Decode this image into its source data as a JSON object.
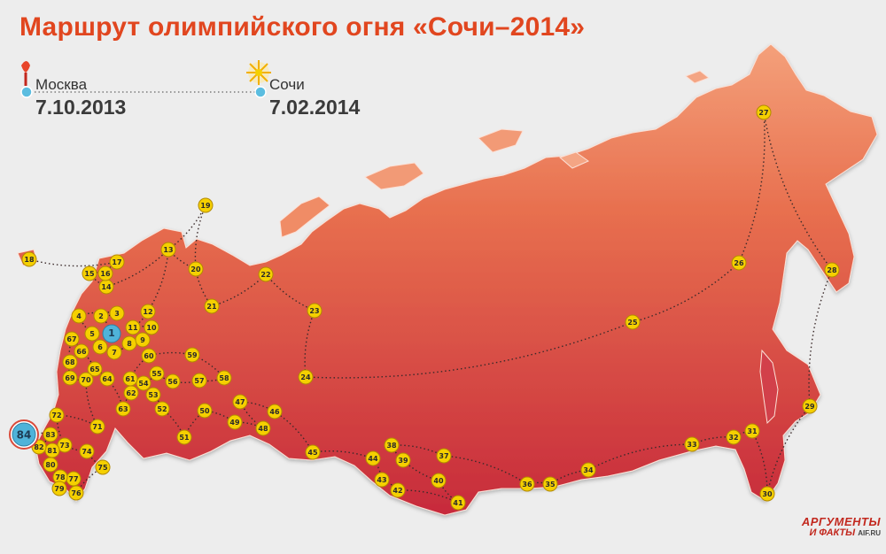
{
  "title": "Маршрут олимпийского огня «Сочи–2014»",
  "start": {
    "city": "Москва",
    "date": "7.10.2013"
  },
  "finish": {
    "city": "Сочи",
    "date": "7.02.2014"
  },
  "logo": {
    "line1": "АРГУМЕНТЫ",
    "line2": "И ФАКТЫ",
    "site": "AIF.RU"
  },
  "colors": {
    "title": "#e1461f",
    "marker": "#f5d000",
    "start_marker": "#4fb3d9",
    "map_top": "#f0906a",
    "map_bottom": "#c9283a"
  },
  "icons": {
    "start": "torch-icon",
    "finish": "firework-icon"
  },
  "stops": [
    "1",
    "2",
    "3",
    "4",
    "5",
    "6",
    "7",
    "8",
    "9",
    "10",
    "11",
    "12",
    "13",
    "14",
    "15",
    "16",
    "17",
    "18",
    "19",
    "20",
    "21",
    "22",
    "23",
    "24",
    "25",
    "26",
    "27",
    "28",
    "29",
    "30",
    "31",
    "32",
    "33",
    "34",
    "35",
    "36",
    "37",
    "38",
    "39",
    "40",
    "41",
    "42",
    "43",
    "44",
    "45",
    "46",
    "47",
    "48",
    "49",
    "50",
    "51",
    "52",
    "53",
    "54",
    "55",
    "56",
    "57",
    "58",
    "59",
    "60",
    "61",
    "62",
    "63",
    "64",
    "65",
    "66",
    "67",
    "68",
    "69",
    "70",
    "71",
    "72",
    "73",
    "74",
    "75",
    "76",
    "77",
    "78",
    "79",
    "80",
    "81",
    "82",
    "83",
    "84"
  ]
}
